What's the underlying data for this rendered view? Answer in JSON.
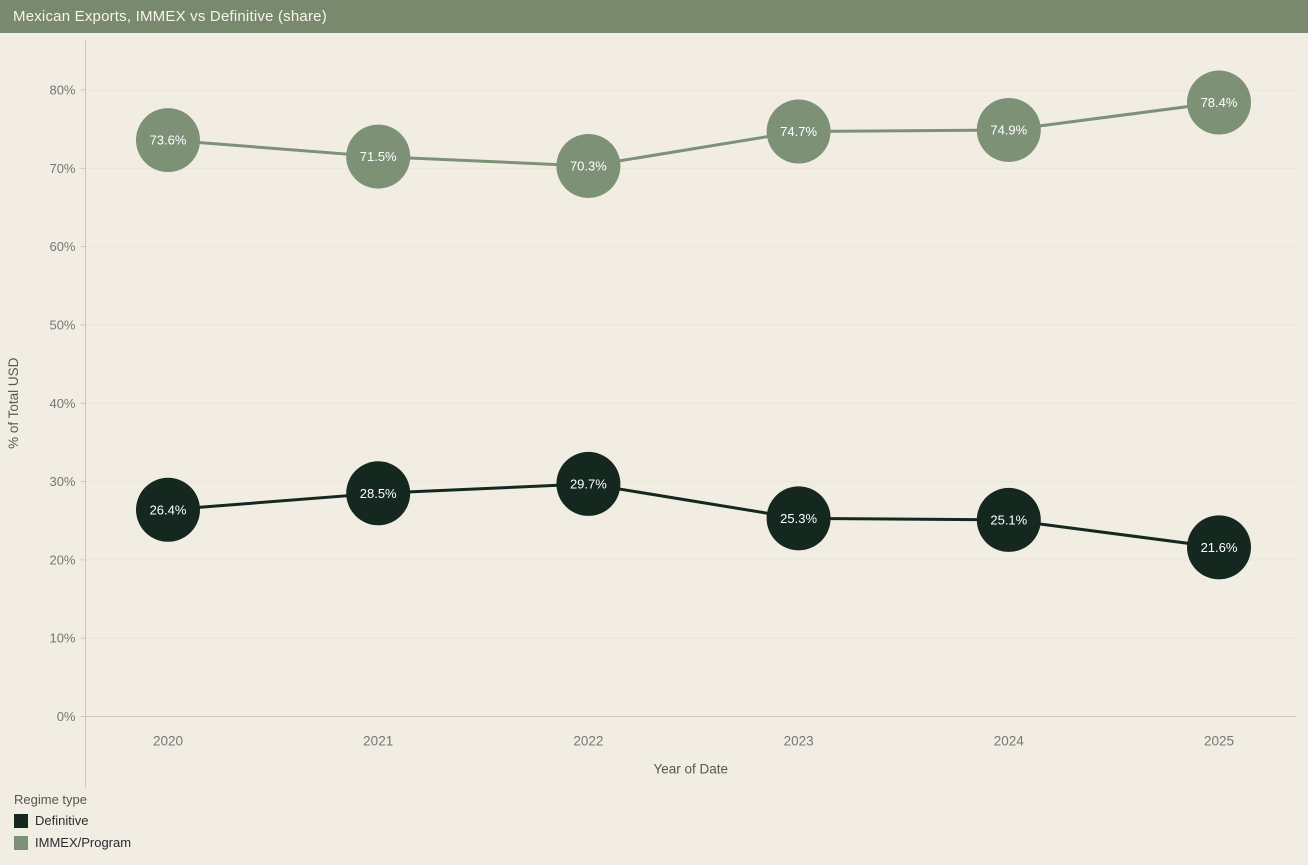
{
  "header": {
    "title": "Mexican Exports, IMMEX vs Definitive (share)"
  },
  "chart_data": {
    "type": "line",
    "title": "Mexican Exports, IMMEX vs Definitive (share)",
    "categories": [
      "2020",
      "2021",
      "2022",
      "2023",
      "2024",
      "2025"
    ],
    "series": [
      {
        "name": "Definitive",
        "color": "#142820",
        "values": [
          26.4,
          28.5,
          29.7,
          25.3,
          25.1,
          21.6
        ],
        "labels": [
          "26.4%",
          "28.5%",
          "29.7%",
          "25.3%",
          "25.1%",
          "21.6%"
        ],
        "label_color": "#ffffff"
      },
      {
        "name": "IMMEX/Program",
        "color": "#7d9176",
        "values": [
          73.6,
          71.5,
          70.3,
          74.7,
          74.9,
          78.4
        ],
        "labels": [
          "73.6%",
          "71.5%",
          "70.3%",
          "74.7%",
          "74.9%",
          "78.4%"
        ],
        "label_color": "#ffffff"
      }
    ],
    "xlabel": "Year of Date",
    "ylabel": "% of Total USD",
    "ylim": [
      0,
      80
    ],
    "ytick_values": [
      0,
      10,
      20,
      30,
      40,
      50,
      60,
      70,
      80
    ],
    "ytick_labels": [
      "0%",
      "10%",
      "20%",
      "30%",
      "40%",
      "50%",
      "60%",
      "70%",
      "80%"
    ],
    "grid": "faint-horizontal",
    "legend": {
      "title": "Regime type",
      "position": "bottom-left"
    }
  },
  "colors": {
    "header_bg": "#78896e",
    "background": "#f2ede3",
    "axis_line": "#cfc8ba",
    "gridline": "#eae4d8",
    "axis_text": "#767676",
    "axis_title_text": "#575757"
  }
}
